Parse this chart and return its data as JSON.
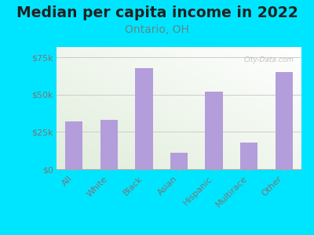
{
  "title": "Median per capita income in 2022",
  "subtitle": "Ontario, OH",
  "categories": [
    "All",
    "White",
    "Black",
    "Asian",
    "Hispanic",
    "Multirace",
    "Other"
  ],
  "values": [
    32000,
    33000,
    68000,
    11000,
    52000,
    18000,
    65000
  ],
  "bar_color": "#b39ddb",
  "title_fontsize": 13.5,
  "subtitle_fontsize": 10,
  "subtitle_color": "#5a8a8a",
  "background_color": "#00e5ff",
  "ylim": [
    0,
    82000
  ],
  "yticks": [
    0,
    25000,
    50000,
    75000
  ],
  "ytick_labels": [
    "$0",
    "$25k",
    "$50k",
    "$75k"
  ],
  "watermark": "City-Data.com",
  "tick_label_color": "#777777",
  "grid_color": "#cccccc"
}
